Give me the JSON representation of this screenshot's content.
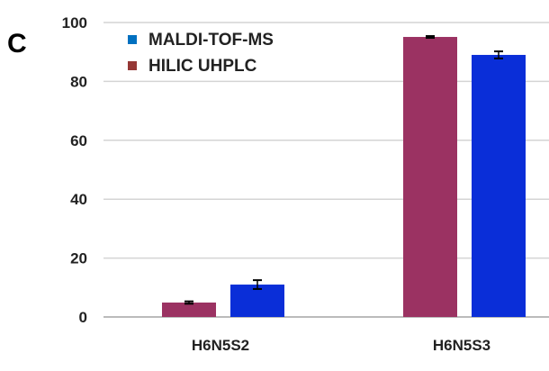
{
  "panel_label": "C",
  "chart_data": {
    "type": "bar",
    "categories": [
      "H6N5S2",
      "H6N5S3"
    ],
    "series": [
      {
        "name": "HILIC UHPLC",
        "values": [
          4.9,
          95.1
        ],
        "errors": [
          0.4,
          0.3
        ],
        "color": "#9b3262",
        "legend_color": "#953735"
      },
      {
        "name": "MALDI-TOF-MS",
        "values": [
          11.0,
          89.0
        ],
        "errors": [
          1.5,
          1.2
        ],
        "color": "#0a2ed8",
        "legend_color": "#0070c0"
      }
    ],
    "legend_order": [
      "MALDI-TOF-MS",
      "HILIC UHPLC"
    ],
    "ylim": [
      0,
      100
    ],
    "yticks": [
      0,
      20,
      40,
      60,
      80,
      100
    ],
    "grid": true,
    "legend_position": "top-left",
    "xlabel": "",
    "ylabel": "",
    "title": ""
  }
}
